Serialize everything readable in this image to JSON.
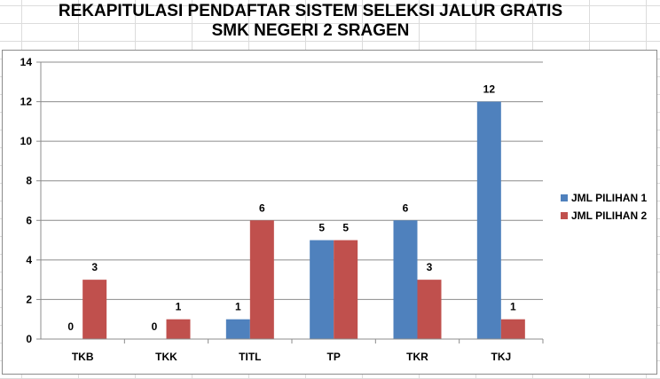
{
  "chart_data": {
    "type": "bar",
    "title": "REKAPITULASI PENDAFTAR SISTEM SELEKSI JALUR GRATIS",
    "subtitle": "SMK NEGERI 2 SRAGEN",
    "categories": [
      "TKB",
      "TKK",
      "TITL",
      "TP",
      "TKR",
      "TKJ"
    ],
    "series": [
      {
        "name": "JML PILIHAN 1",
        "values": [
          0,
          0,
          1,
          5,
          6,
          12
        ],
        "color": "#4f81bd"
      },
      {
        "name": "JML PILIHAN 2",
        "values": [
          3,
          1,
          6,
          5,
          3,
          1
        ],
        "color": "#c0504d"
      }
    ],
    "ylim": [
      0,
      14
    ],
    "yticks": [
      0,
      2,
      4,
      6,
      8,
      10,
      12,
      14
    ],
    "grid": true,
    "legend": "right",
    "data_labels": true
  }
}
